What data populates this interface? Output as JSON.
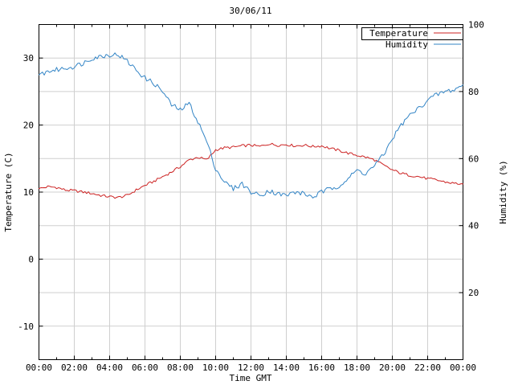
{
  "title": "30/06/11",
  "axes": {
    "x": {
      "label": "Time GMT",
      "ticks": [
        "00:00",
        "02:00",
        "04:00",
        "06:00",
        "08:00",
        "10:00",
        "12:00",
        "14:00",
        "16:00",
        "18:00",
        "20:00",
        "22:00",
        "00:00"
      ],
      "range_hours": [
        0,
        24
      ]
    },
    "y_left": {
      "label": "Temperature (C)",
      "ticks": [
        "30",
        "20",
        "10",
        "0",
        "-10"
      ],
      "tick_values": [
        30,
        20,
        10,
        0,
        -10
      ],
      "range": [
        -15,
        35
      ]
    },
    "y_right": {
      "label": "Humidity (%)",
      "ticks": [
        "100",
        "80",
        "60",
        "40",
        "20"
      ],
      "tick_values": [
        100,
        80,
        60,
        40,
        20
      ],
      "range": [
        0,
        100
      ]
    }
  },
  "legend": [
    {
      "label": "Temperature",
      "color": "#cc2222"
    },
    {
      "label": "Humidity",
      "color": "#3385c6"
    }
  ],
  "colors": {
    "temperature": "#cc2222",
    "humidity": "#3385c6",
    "grid": "#cfcfcf",
    "axis": "#000000"
  },
  "chart_data": {
    "type": "line",
    "title": "30/06/11",
    "xlabel": "Time GMT",
    "ylabel_left": "Temperature (C)",
    "ylabel_right": "Humidity (%)",
    "x_hours": [
      0,
      0.5,
      1,
      1.5,
      2,
      2.5,
      3,
      3.5,
      4,
      4.5,
      5,
      5.5,
      6,
      6.5,
      7,
      7.5,
      8,
      8.5,
      9,
      9.5,
      10,
      10.5,
      11,
      11.5,
      12,
      12.5,
      13,
      13.5,
      14,
      14.5,
      15,
      15.5,
      16,
      16.5,
      17,
      17.5,
      18,
      18.5,
      19,
      19.5,
      20,
      20.5,
      21,
      21.5,
      22,
      22.5,
      23,
      23.5,
      24
    ],
    "series": [
      {
        "name": "Temperature",
        "axis": "left",
        "color": "#cc2222",
        "values": [
          10.5,
          10.8,
          10.7,
          10.3,
          10.2,
          10.0,
          9.8,
          9.5,
          9.3,
          9.2,
          9.5,
          10.3,
          11.0,
          11.6,
          12.3,
          13.0,
          13.8,
          14.8,
          15.2,
          14.8,
          16.3,
          16.6,
          16.7,
          16.9,
          17.0,
          16.8,
          17.2,
          17.0,
          17.1,
          16.9,
          17.0,
          16.8,
          16.9,
          16.5,
          16.2,
          15.8,
          15.5,
          15.2,
          14.8,
          14.0,
          13.3,
          12.8,
          12.5,
          12.3,
          12.0,
          11.8,
          11.5,
          11.3,
          11.2
        ]
      },
      {
        "name": "Humidity",
        "axis": "right",
        "color": "#3385c6",
        "values": [
          85,
          86,
          86.5,
          87,
          87.5,
          88.5,
          90,
          90.5,
          91,
          91,
          89,
          86.5,
          84,
          82.5,
          80,
          76,
          74.5,
          76.5,
          71,
          65,
          57,
          53,
          51,
          52.5,
          50,
          49,
          50.5,
          49.5,
          49,
          50,
          49.5,
          48.5,
          50,
          51,
          52,
          54,
          56.5,
          55.5,
          58,
          61,
          66,
          70,
          73,
          75,
          77.5,
          79,
          80,
          80.5,
          82
        ]
      }
    ],
    "y_left_range": [
      -15,
      35
    ],
    "y_right_range": [
      0,
      100
    ],
    "grid": true,
    "legend_position": "top-right",
    "render_hints": {
      "subdivide": 5,
      "noise_amp": [
        0.2,
        0.75
      ]
    }
  }
}
